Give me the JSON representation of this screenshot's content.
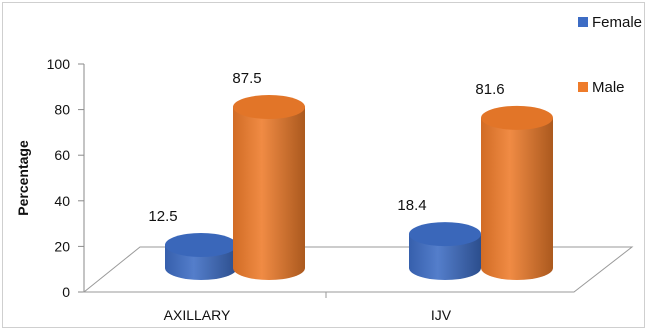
{
  "chart_data": {
    "type": "bar",
    "categories": [
      "AXILLARY",
      "IJV"
    ],
    "series": [
      {
        "name": "Female",
        "values": [
          12.5,
          18.4
        ],
        "color": "#3d6cc4"
      },
      {
        "name": "Male",
        "values": [
          87.5,
          81.6
        ],
        "color": "#ee7b2a"
      }
    ],
    "ylabel": "Percentage",
    "xlabel": "",
    "ylim": [
      0,
      100
    ],
    "yticks": [
      0,
      20,
      40,
      60,
      80,
      100
    ],
    "legend_position": "right",
    "style": "3d-cylinder",
    "grid": false
  }
}
